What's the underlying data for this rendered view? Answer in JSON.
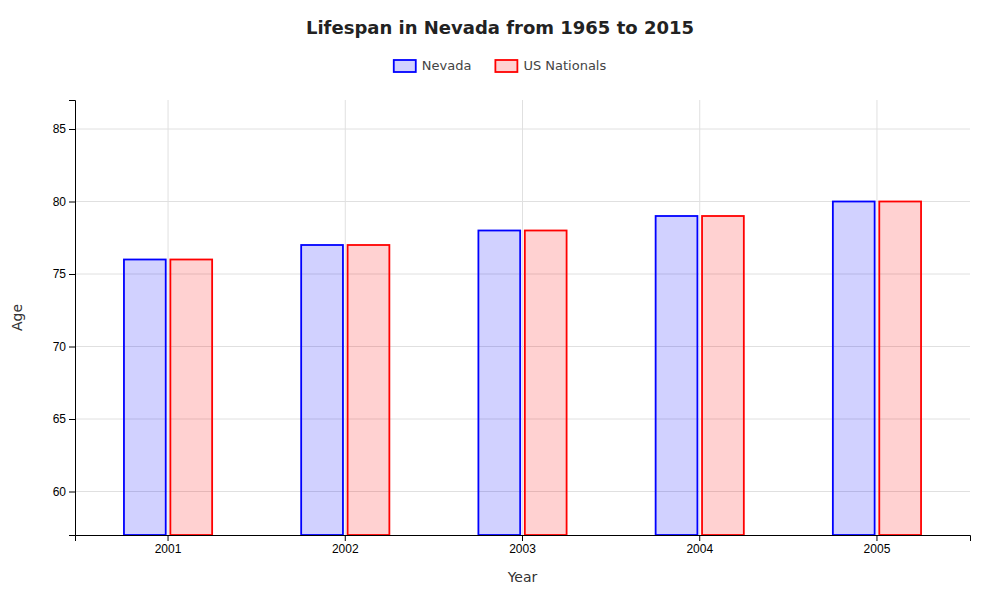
{
  "chart_data": {
    "type": "bar",
    "title": "Lifespan in Nevada from 1965 to 2015",
    "xlabel": "Year",
    "ylabel": "Age",
    "categories": [
      "2001",
      "2002",
      "2003",
      "2004",
      "2005"
    ],
    "series": [
      {
        "name": "Nevada",
        "color": "#0000ff",
        "values": [
          76,
          77,
          78,
          79,
          80
        ]
      },
      {
        "name": "US Nationals",
        "color": "#ff0000",
        "values": [
          76,
          77,
          78,
          79,
          80
        ]
      }
    ],
    "ylim": [
      57,
      87
    ],
    "yticks": [
      60,
      65,
      70,
      75,
      80,
      85
    ],
    "grid": true,
    "legend": "top"
  }
}
